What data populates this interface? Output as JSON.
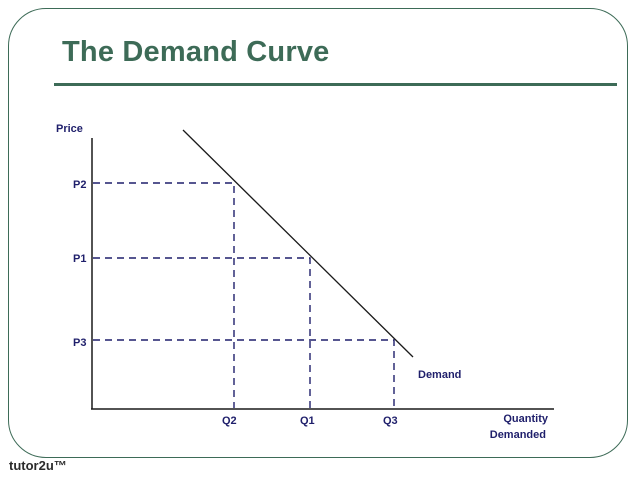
{
  "slide": {
    "title": "The Demand Curve",
    "brand": "tutor2u™"
  },
  "colors": {
    "accent": "#3d6b57",
    "label_text": "#1f1f6b",
    "line": "#1a1a1a"
  },
  "diagram": {
    "y_axis_label": "Price",
    "x_axis_label_line1": "Quantity",
    "x_axis_label_line2": "Demanded",
    "curve_label": "Demand",
    "price_labels": {
      "p1": "P1",
      "p2": "P2",
      "p3": "P3"
    },
    "quantity_labels": {
      "q1": "Q1",
      "q2": "Q2",
      "q3": "Q3"
    }
  }
}
